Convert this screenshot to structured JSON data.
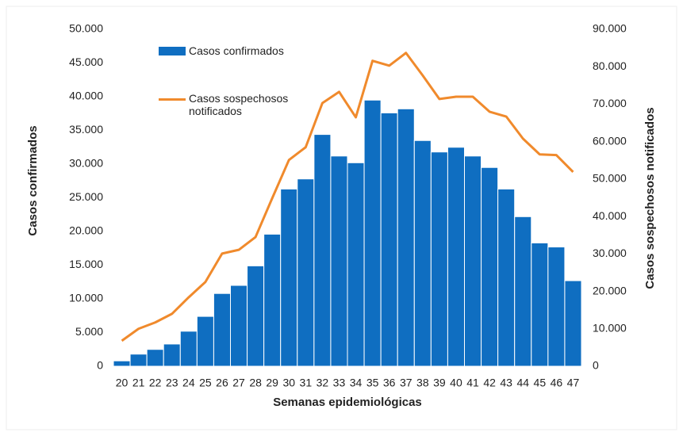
{
  "chart_data": {
    "type": "bar-line",
    "x_label": "Semanas epidemiológicas",
    "y_label": "Casos confirmados",
    "y2_label": "Casos sospechosos notificados",
    "categories": [
      "20",
      "21",
      "22",
      "23",
      "24",
      "25",
      "26",
      "27",
      "28",
      "29",
      "30",
      "31",
      "32",
      "33",
      "34",
      "35",
      "36",
      "37",
      "38",
      "39",
      "40",
      "41",
      "42",
      "43",
      "44",
      "45",
      "46",
      "47"
    ],
    "series": [
      {
        "name": "Casos confirmados",
        "color": "#0f6ec1",
        "kind": "bar",
        "values": [
          800,
          1800,
          2500,
          3300,
          5200,
          7400,
          10800,
          12000,
          14900,
          19600,
          26300,
          27800,
          34400,
          31200,
          30200,
          39500,
          37600,
          38200,
          33500,
          31800,
          32500,
          31200,
          29500,
          26300,
          22200,
          18300,
          17700,
          12700
        ]
      },
      {
        "name": "Casos sospechosos notificados",
        "color": "#f08a2c",
        "kind": "line",
        "axis": "y2",
        "values": [
          6800,
          10000,
          11700,
          14000,
          18400,
          22500,
          30100,
          31100,
          34500,
          44900,
          55100,
          58500,
          70300,
          73300,
          66500,
          81600,
          80300,
          83700,
          77700,
          71400,
          72000,
          72000,
          68000,
          66700,
          60800,
          56600,
          56400,
          51900
        ]
      }
    ],
    "ylim": [
      0,
      50000
    ],
    "yticks": [
      0,
      {
        "value": 5000,
        "label": "5.000"
      },
      {
        "value": 10000,
        "label": "10.000"
      },
      {
        "value": 15000,
        "label": "15.000"
      },
      {
        "value": 20000,
        "label": "20.000"
      },
      {
        "value": 25000,
        "label": "25.000"
      },
      {
        "value": 30000,
        "label": "30.000"
      },
      {
        "value": 35000,
        "label": "35.000"
      },
      {
        "value": 40000,
        "label": "40.000"
      },
      {
        "value": 45000,
        "label": "45.000"
      },
      {
        "value": 50000,
        "label": "50.000"
      }
    ],
    "y2lim": [
      0,
      90000
    ],
    "y2ticks": [
      0,
      {
        "value": 10000,
        "label": "10.000"
      },
      {
        "value": 20000,
        "label": "20.000"
      },
      {
        "value": 30000,
        "label": "30.000"
      },
      {
        "value": 40000,
        "label": "40.000"
      },
      {
        "value": 50000,
        "label": "50.000"
      },
      {
        "value": 60000,
        "label": "60.000"
      },
      {
        "value": 70000,
        "label": "70.000"
      },
      {
        "value": 80000,
        "label": "80.000"
      },
      {
        "value": 90000,
        "label": "90.000"
      }
    ]
  }
}
